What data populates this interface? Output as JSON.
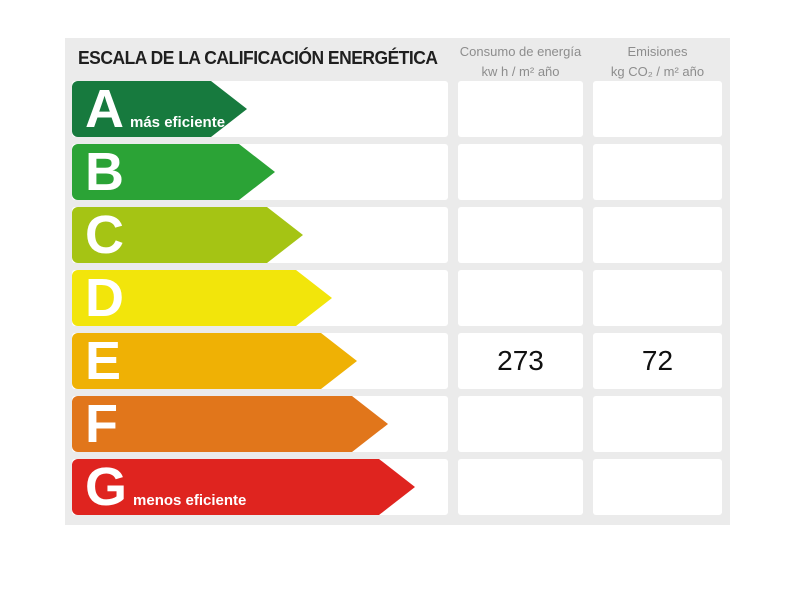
{
  "header": {
    "title": "ESCALA DE LA CALIFICACIÓN ENERGÉTICA",
    "consumo_col": {
      "line1": "Consumo de energía",
      "line2": "kw h / m² año"
    },
    "emisiones_col": {
      "line1": "Emisiones",
      "line2": "kg CO₂ / m² año"
    }
  },
  "bands": [
    {
      "letter": "A",
      "sublabel": "más eficiente",
      "color": "#177a3e",
      "arrow_width": 175,
      "consumo": "",
      "emisiones": ""
    },
    {
      "letter": "B",
      "sublabel": "",
      "color": "#2ba336",
      "arrow_width": 203,
      "consumo": "",
      "emisiones": ""
    },
    {
      "letter": "C",
      "sublabel": "",
      "color": "#a5c414",
      "arrow_width": 231,
      "consumo": "",
      "emisiones": ""
    },
    {
      "letter": "D",
      "sublabel": "",
      "color": "#f2e50b",
      "arrow_width": 260,
      "consumo": "",
      "emisiones": ""
    },
    {
      "letter": "E",
      "sublabel": "",
      "color": "#efb105",
      "arrow_width": 285,
      "consumo": "273",
      "emisiones": "72"
    },
    {
      "letter": "F",
      "sublabel": "",
      "color": "#e1761b",
      "arrow_width": 316,
      "consumo": "",
      "emisiones": ""
    },
    {
      "letter": "G",
      "sublabel": "menos eficiente",
      "color": "#df241f",
      "arrow_width": 343,
      "consumo": "",
      "emisiones": ""
    }
  ],
  "colors": {
    "panel_bg": "#ebebeb",
    "cell_bg": "#ffffff",
    "title_text": "#1f1f1f",
    "header_text": "#8d8d8d",
    "value_text": "#101010"
  },
  "chart_data": {
    "type": "bar",
    "title": "ESCALA DE LA CALIFICACIÓN ENERGÉTICA",
    "categories": [
      "A",
      "B",
      "C",
      "D",
      "E",
      "F",
      "G"
    ],
    "category_labels": {
      "A": "más eficiente",
      "G": "menos eficiente"
    },
    "bar_colors": [
      "#177a3e",
      "#2ba336",
      "#a5c414",
      "#f2e50b",
      "#efb105",
      "#e1761b",
      "#df241f"
    ],
    "bar_relative_lengths": [
      175,
      203,
      231,
      260,
      285,
      316,
      343
    ],
    "columns": [
      {
        "name": "Consumo de energía",
        "unit": "kw h / m² año"
      },
      {
        "name": "Emisiones",
        "unit": "kg CO₂ / m² año"
      }
    ],
    "rated_band": "E",
    "series": [
      {
        "name": "Consumo de energía (kw h / m² año)",
        "values": [
          null,
          null,
          null,
          null,
          273,
          null,
          null
        ]
      },
      {
        "name": "Emisiones (kg CO₂ / m² año)",
        "values": [
          null,
          null,
          null,
          null,
          72,
          null,
          null
        ]
      }
    ],
    "legend_position": "none",
    "grid": false
  }
}
